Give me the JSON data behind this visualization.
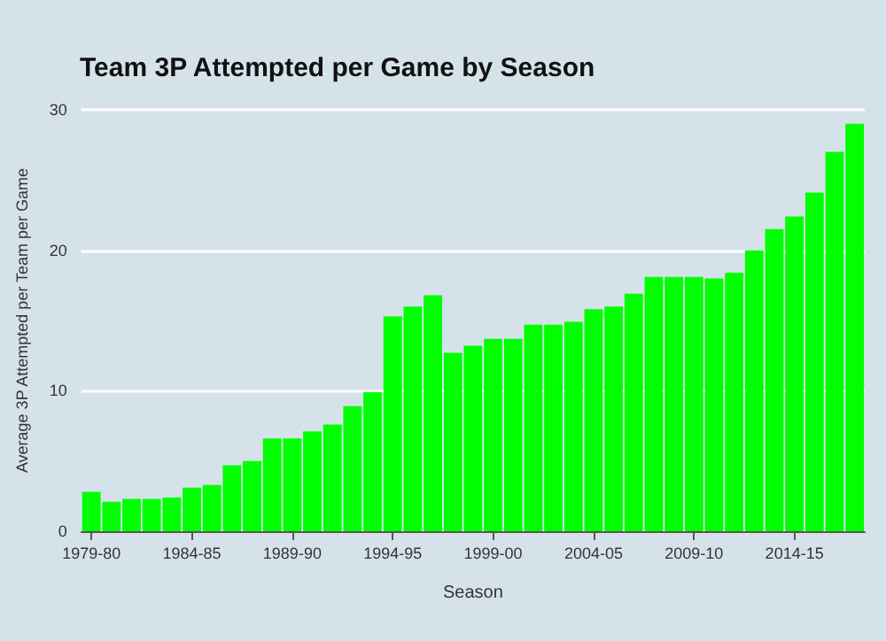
{
  "chart_data": {
    "type": "bar",
    "title": "Team 3P Attempted per Game by Season",
    "xlabel": "Season",
    "ylabel": "Average 3P Attempted per Team per Game",
    "categories": [
      "1979-80",
      null,
      null,
      null,
      null,
      "1984-85",
      null,
      null,
      null,
      null,
      "1989-90",
      null,
      null,
      null,
      null,
      "1994-95",
      null,
      null,
      null,
      null,
      "1999-00",
      null,
      null,
      null,
      null,
      "2004-05",
      null,
      null,
      null,
      null,
      "2009-10",
      null,
      null,
      null,
      null,
      "2014-15",
      null,
      null,
      null
    ],
    "values": [
      2.8,
      2.1,
      2.3,
      2.3,
      2.4,
      3.1,
      3.3,
      4.7,
      5.0,
      6.6,
      6.6,
      7.1,
      7.6,
      8.9,
      9.9,
      15.3,
      16.0,
      16.8,
      12.7,
      13.2,
      13.7,
      13.7,
      14.7,
      14.7,
      14.9,
      15.8,
      16.0,
      16.9,
      18.1,
      18.1,
      18.1,
      18.0,
      18.4,
      20.0,
      21.5,
      22.4,
      24.1,
      27.0,
      29.0
    ],
    "color": "#00ff00",
    "ylim": [
      0,
      30
    ],
    "yticks": [
      0,
      10,
      20,
      30
    ],
    "grid": "y"
  }
}
